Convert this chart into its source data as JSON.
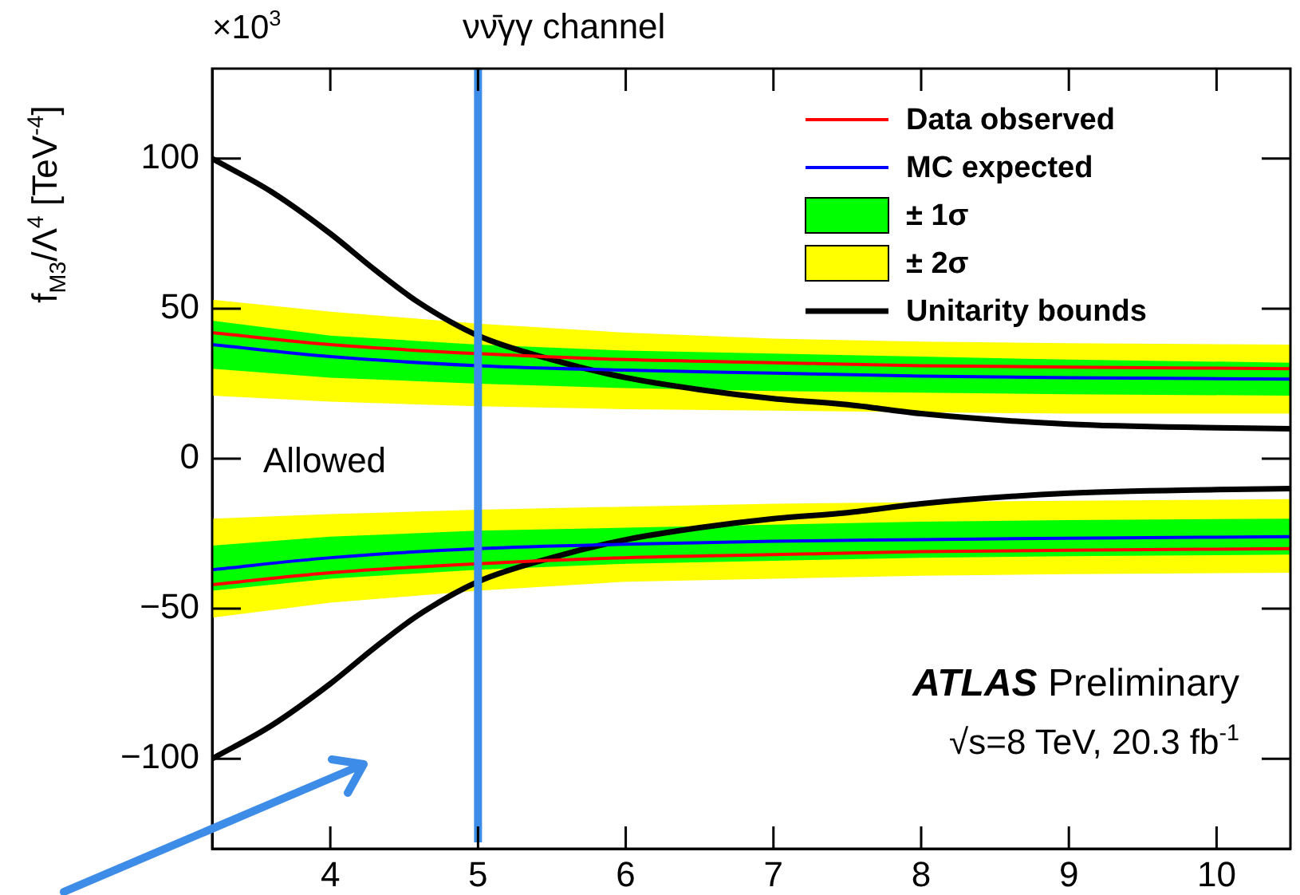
{
  "chart_data": {
    "type": "line",
    "title": "νν̄γγ channel",
    "ylabel": "f$_{M3}$/Λ$^{4}$ [TeV$^{-4}$]",
    "xlim": [
      3.2,
      10.5
    ],
    "xticks": [
      4,
      5,
      6,
      7,
      8,
      9,
      10
    ],
    "ylim": [
      -130,
      130
    ],
    "yticks": [
      -100,
      -50,
      0,
      50,
      100
    ],
    "x": [
      3.2,
      4,
      5,
      6,
      7,
      8,
      9,
      10.5
    ],
    "legend": "top right",
    "grid": false,
    "series": [
      {
        "name": "± 2σ",
        "type": "line",
        "color": "#ffff00",
        "values": [
          null,
          null,
          null,
          null,
          null,
          null,
          null,
          null
        ],
        "lower": [
          21,
          19,
          17.5,
          16.5,
          16,
          15.5,
          15,
          15
        ],
        "upper": [
          53,
          49,
          45,
          42,
          40,
          39,
          38.5,
          38
        ]
      },
      {
        "type": "line",
        "color": "#ffff00",
        "values": [
          null,
          null,
          null,
          null,
          null,
          null,
          null,
          null
        ],
        "lower": [
          -53,
          -48,
          -44,
          -41,
          -40,
          -39,
          -38.5,
          -38
        ],
        "upper": [
          -20,
          -18.5,
          -17,
          -16,
          -15,
          -14.5,
          -14,
          -13.5
        ]
      },
      {
        "name": "± 1σ",
        "type": "line",
        "color": "#00ff00",
        "values": [
          null,
          null,
          null,
          null,
          null,
          null,
          null,
          null
        ],
        "lower": [
          30,
          27,
          25,
          23.5,
          22.5,
          22,
          21.5,
          21
        ],
        "upper": [
          46,
          41,
          38,
          36,
          35,
          34,
          33,
          32
        ]
      },
      {
        "type": "line",
        "color": "#00ff00",
        "values": [
          null,
          null,
          null,
          null,
          null,
          null,
          null,
          null
        ],
        "lower": [
          -44,
          -40,
          -37,
          -35,
          -34,
          -33,
          -32.5,
          -32
        ],
        "upper": [
          -29,
          -26,
          -24,
          -23,
          -22,
          -21,
          -20.5,
          -20
        ]
      },
      {
        "name": "Data observed",
        "type": "line",
        "color": "#ff0000",
        "values": [
          42,
          38,
          35,
          33,
          32,
          31,
          30.5,
          30
        ]
      },
      {
        "type": "line",
        "color": "#ff0000",
        "values": [
          -42,
          -38,
          -35,
          -33,
          -32,
          -31,
          -30.5,
          -30
        ]
      },
      {
        "name": "MC expected",
        "type": "line",
        "color": "#0000ff",
        "values": [
          38,
          34,
          31,
          29.5,
          28.5,
          27.5,
          27,
          26.5
        ]
      },
      {
        "type": "line",
        "color": "#0000ff",
        "values": [
          -37,
          -33,
          -30,
          -28.5,
          -27.5,
          -27,
          -26.5,
          -26
        ]
      },
      {
        "name": "Unitarity bounds",
        "type": "line",
        "color": "#000000",
        "x": [
          3.2,
          3.6,
          4,
          4.3,
          4.6,
          5,
          5.5,
          6,
          6.5,
          7,
          7.5,
          8,
          9,
          10,
          10.5
        ],
        "values": [
          100,
          89,
          75,
          63,
          52,
          41,
          33,
          27,
          23,
          20,
          18,
          15,
          11.5,
          10.3,
          10
        ]
      },
      {
        "type": "line",
        "color": "#000000",
        "x": [
          3.2,
          3.6,
          4,
          4.3,
          4.6,
          5,
          5.5,
          6,
          6.5,
          7,
          7.5,
          8,
          9,
          10,
          10.5
        ],
        "values": [
          -100,
          -89,
          -75,
          -63,
          -52,
          -41,
          -33,
          -27,
          -23,
          -20,
          -18,
          -15,
          -11.5,
          -10.3,
          -10
        ]
      }
    ],
    "ref_lines": [
      {
        "axis": "x",
        "value": 5,
        "color": "#3d8de8"
      }
    ],
    "annotations": [
      "×10$^{3}$",
      "Allowed",
      "ATLAS Preliminary",
      "√s=8 TeV, 20.3 fb$^{-1}$"
    ]
  }
}
